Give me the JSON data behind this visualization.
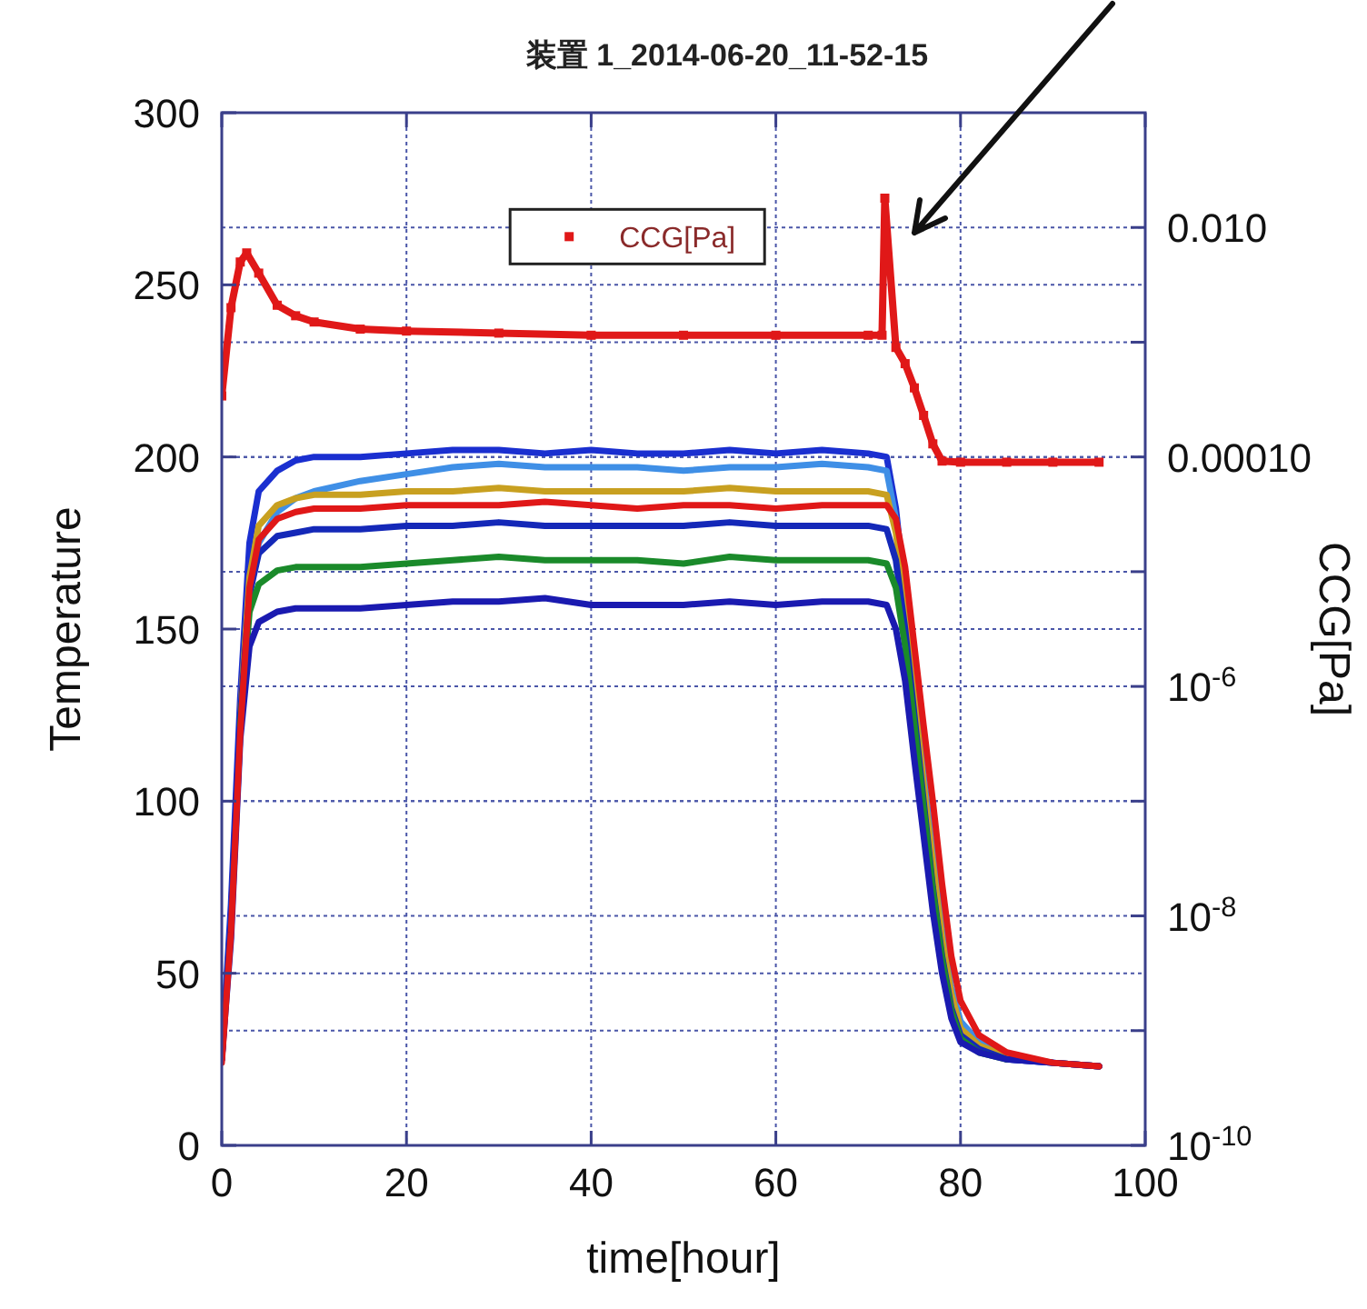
{
  "chart_data": {
    "type": "line",
    "title": "装置 1_2014-06-20_11-52-15",
    "xlabel": "time[hour]",
    "ylabel": "Temperature",
    "y2label": "CCG[Pa]",
    "x": [
      0,
      1,
      2,
      3,
      4,
      6,
      8,
      10,
      15,
      20,
      25,
      30,
      35,
      40,
      45,
      50,
      55,
      60,
      65,
      70,
      72,
      73,
      74,
      75,
      76,
      77,
      78,
      79,
      80,
      82,
      85,
      90,
      95
    ],
    "xlim": [
      0,
      100
    ],
    "xticks": [
      0,
      20,
      40,
      60,
      80,
      100
    ],
    "ylim": [
      0,
      300
    ],
    "yticks": [
      0,
      50,
      100,
      150,
      200,
      250,
      300
    ],
    "y2lim": [
      1e-10,
      0.1
    ],
    "y2ticks": [
      {
        "value": 1e-10,
        "label": "10$^{-10}$"
      },
      {
        "value": 1e-09,
        "label": null
      },
      {
        "value": 1e-08,
        "label": "10$^{-8}$"
      },
      {
        "value": 1e-07,
        "label": null
      },
      {
        "value": 1e-06,
        "label": "10$^{-6}$"
      },
      {
        "value": 1e-05,
        "label": null
      },
      {
        "value": 0.0001,
        "label": "0.00010"
      },
      {
        "value": 0.001,
        "label": null
      },
      {
        "value": 0.01,
        "label": "0.010"
      }
    ],
    "log": "y2",
    "grid": true,
    "legend": "top",
    "line_style": "solid",
    "series": [
      {
        "color": "#1a2fd0",
        "values": [
          25,
          70,
          130,
          175,
          190,
          196,
          199,
          200,
          200,
          201,
          202,
          202,
          201,
          202,
          201,
          201,
          202,
          201,
          202,
          201,
          200,
          185,
          160,
          130,
          105,
          80,
          58,
          42,
          33,
          28,
          25,
          24,
          23
        ]
      },
      {
        "color": "#3f8fe6",
        "values": [
          25,
          65,
          120,
          160,
          175,
          184,
          188,
          190,
          193,
          195,
          197,
          198,
          197,
          197,
          197,
          196,
          197,
          197,
          198,
          197,
          196,
          182,
          160,
          132,
          108,
          85,
          63,
          46,
          36,
          30,
          26,
          24,
          23
        ]
      },
      {
        "color": "#c8a020",
        "values": [
          null,
          null,
          125,
          165,
          180,
          186,
          188,
          189,
          189,
          190,
          190,
          191,
          190,
          190,
          190,
          190,
          191,
          190,
          190,
          190,
          189,
          178,
          158,
          130,
          105,
          82,
          60,
          44,
          34,
          29,
          26,
          24,
          23
        ]
      },
      {
        "color": "#1428b8",
        "values": [
          25,
          66,
          125,
          160,
          172,
          177,
          178,
          179,
          179,
          180,
          180,
          181,
          180,
          180,
          180,
          180,
          181,
          180,
          180,
          180,
          179,
          170,
          150,
          125,
          100,
          75,
          55,
          40,
          32,
          28,
          25,
          24,
          23
        ]
      },
      {
        "color": "#1a8a2a",
        "values": [
          null,
          null,
          122,
          155,
          163,
          167,
          168,
          168,
          168,
          169,
          170,
          171,
          170,
          170,
          170,
          169,
          171,
          170,
          170,
          170,
          169,
          162,
          145,
          122,
          98,
          74,
          54,
          39,
          31,
          27,
          25,
          null,
          null
        ]
      },
      {
        "color": "#1a1ab0",
        "values": [
          25,
          60,
          118,
          145,
          152,
          155,
          156,
          156,
          156,
          157,
          158,
          158,
          159,
          157,
          157,
          157,
          158,
          157,
          158,
          158,
          157,
          150,
          135,
          112,
          90,
          68,
          50,
          37,
          30,
          27,
          25,
          24,
          23
        ]
      },
      {
        "color": "#e01818",
        "values": [
          24,
          62,
          120,
          162,
          176,
          182,
          184,
          185,
          185,
          186,
          186,
          186,
          187,
          186,
          185,
          186,
          186,
          185,
          186,
          186,
          186,
          182,
          168,
          145,
          122,
          100,
          76,
          55,
          42,
          32,
          27,
          24,
          23
        ]
      },
      {
        "name": "CCG[Pa]",
        "color": "#e01818",
        "axis": "y2",
        "marker": "square",
        "x": [
          0,
          1,
          2,
          2.7,
          4,
          6,
          8,
          10,
          15,
          20,
          30,
          40,
          50,
          60,
          70,
          71.5,
          71.8,
          73,
          74,
          75,
          76,
          77,
          78,
          80,
          85,
          90,
          95
        ],
        "values": [
          0.00034,
          0.002,
          0.005,
          0.006,
          0.004,
          0.0021,
          0.0017,
          0.0015,
          0.0013,
          0.00125,
          0.0012,
          0.00115,
          0.00115,
          0.00115,
          0.00115,
          0.00115,
          0.018,
          0.0009,
          0.00065,
          0.0004,
          0.00023,
          0.00013,
          9.2e-05,
          9e-05,
          9e-05,
          9e-05,
          9e-05
        ]
      }
    ]
  }
}
